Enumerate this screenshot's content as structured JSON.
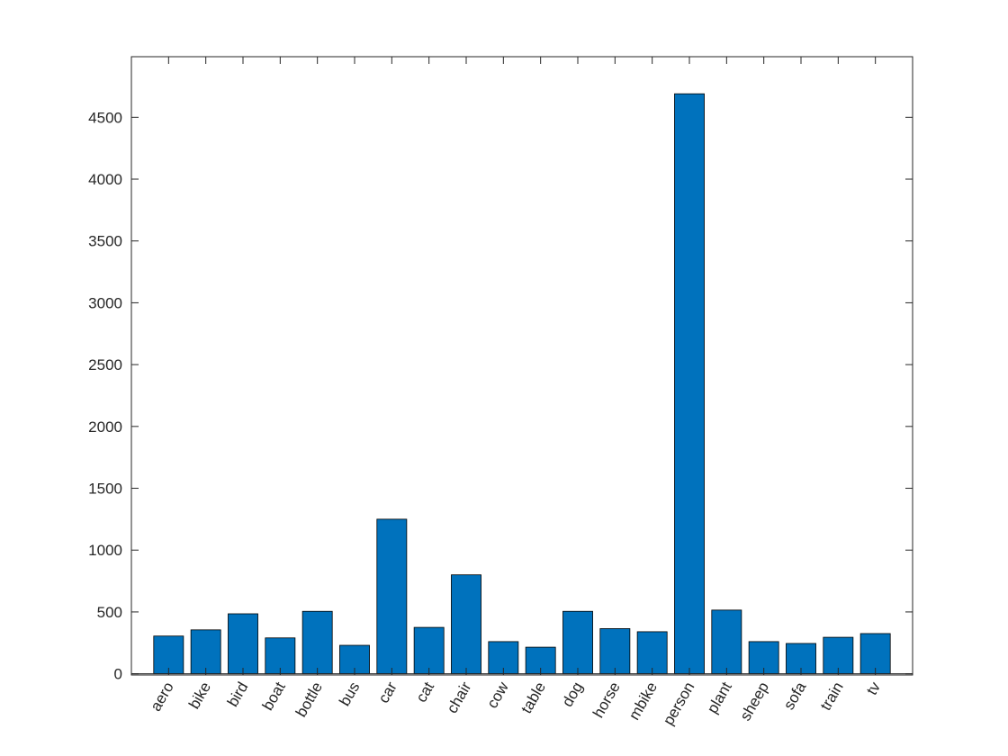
{
  "chart_data": {
    "type": "bar",
    "categories": [
      "aero",
      "bike",
      "bird",
      "boat",
      "bottle",
      "bus",
      "car",
      "cat",
      "chair",
      "cow",
      "table",
      "dog",
      "horse",
      "mbike",
      "person",
      "plant",
      "sheep",
      "sofa",
      "train",
      "tv"
    ],
    "values": [
      305,
      355,
      485,
      290,
      505,
      230,
      1250,
      375,
      800,
      260,
      215,
      505,
      365,
      340,
      4690,
      515,
      260,
      245,
      295,
      325
    ],
    "title": "",
    "xlabel": "",
    "ylabel": "",
    "ylim": [
      -10,
      4990
    ],
    "yticks": [
      0,
      500,
      1000,
      1500,
      2000,
      2500,
      3000,
      3500,
      4000,
      4500
    ],
    "ytick_labels": [
      "0",
      "500",
      "1000",
      "1500",
      "2000",
      "2500",
      "3000",
      "3500",
      "4000",
      "4500"
    ],
    "bar_color": "#0072BD",
    "grid": false,
    "box": true
  }
}
